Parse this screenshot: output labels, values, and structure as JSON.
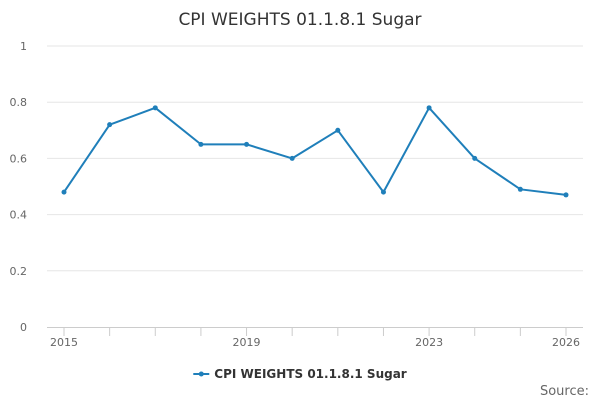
{
  "chart_data": {
    "type": "line",
    "title": "CPI WEIGHTS 01.1.8.1 Sugar",
    "xlabel": "",
    "ylabel": "",
    "x": [
      2015,
      2016,
      2017,
      2018,
      2019,
      2020,
      2021,
      2022,
      2023,
      2024,
      2025,
      2026
    ],
    "series": [
      {
        "name": "CPI WEIGHTS 01.1.8.1 Sugar",
        "color": "#1f7fba",
        "values": [
          0.48,
          0.72,
          0.78,
          0.65,
          0.65,
          0.6,
          0.7,
          0.48,
          0.78,
          0.6,
          0.49,
          0.47
        ]
      }
    ],
    "x_tick_labels": [
      "2015",
      "2019",
      "2023",
      "2026"
    ],
    "y_tick_labels": [
      "0",
      "0.2",
      "0.4",
      "0.6",
      "0.8",
      "1"
    ],
    "ylim": [
      0,
      1
    ],
    "xlim": [
      2015,
      2026
    ],
    "grid": true,
    "legend_position": "bottom-center"
  },
  "credit": "Source:"
}
